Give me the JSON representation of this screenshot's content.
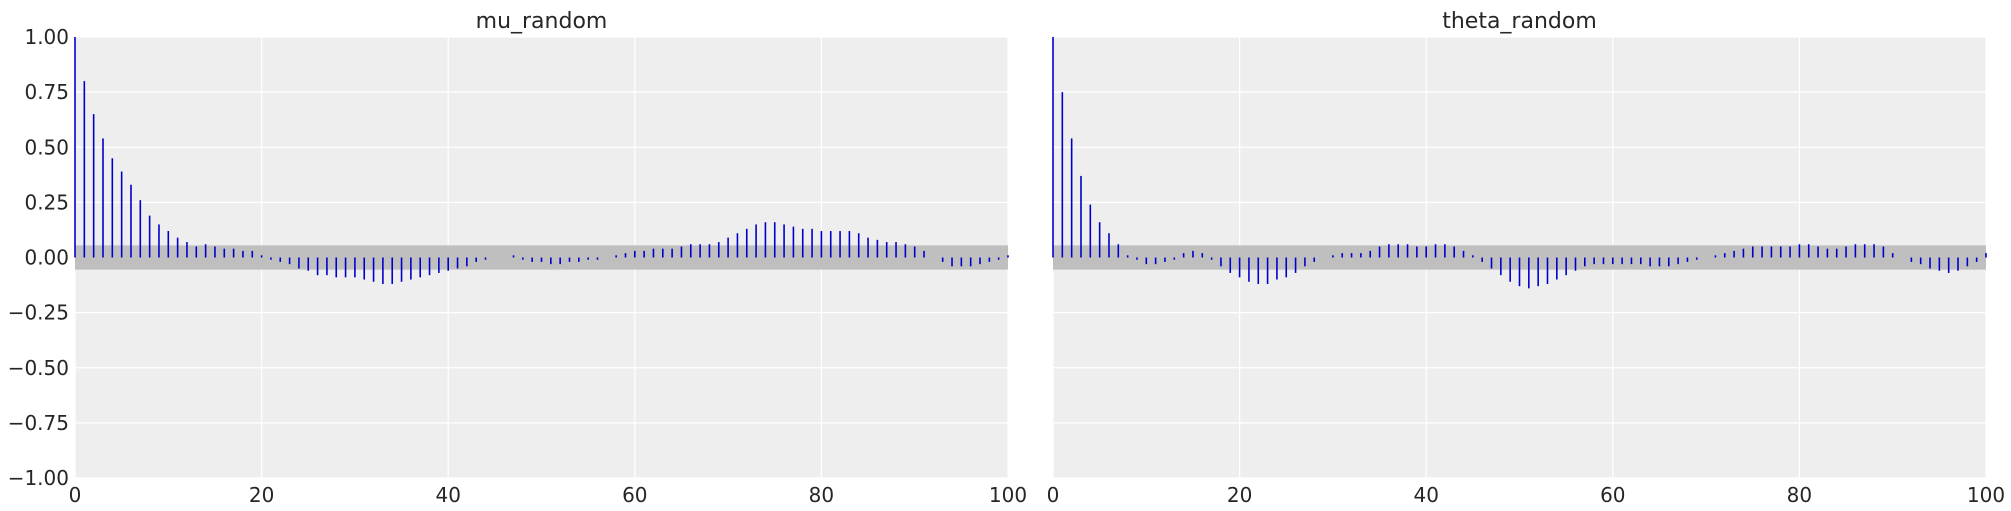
{
  "colors": {
    "panel_bg": "#eeeeee",
    "grid": "#ffffff",
    "stem": "#0000cc",
    "band": "#bfbfbf",
    "text": "#262626"
  },
  "chart_data": [
    {
      "type": "bar",
      "title": "mu_random",
      "xlabel": "",
      "ylabel": "",
      "xlim": [
        0,
        100
      ],
      "ylim": [
        -1.0,
        1.0
      ],
      "xticks": [
        0,
        20,
        40,
        60,
        80,
        100
      ],
      "yticks": [
        -1.0,
        -0.75,
        -0.5,
        -0.25,
        0.0,
        0.25,
        0.5,
        0.75,
        1.0
      ],
      "ytick_labels": [
        "−1.00",
        "−0.75",
        "−0.50",
        "−0.25",
        "0.00",
        "0.25",
        "0.50",
        "0.75",
        "1.00"
      ],
      "xtick_labels": [
        "0",
        "20",
        "40",
        "60",
        "80",
        "100"
      ],
      "y_labels_shown": true,
      "grid": true,
      "confidence_band": [
        -0.055,
        0.055
      ],
      "lags_start": 0,
      "values": [
        1.0,
        0.8,
        0.65,
        0.54,
        0.45,
        0.39,
        0.33,
        0.26,
        0.19,
        0.15,
        0.12,
        0.09,
        0.07,
        0.05,
        0.06,
        0.05,
        0.04,
        0.04,
        0.03,
        0.03,
        0.01,
        -0.01,
        -0.02,
        -0.03,
        -0.05,
        -0.06,
        -0.08,
        -0.08,
        -0.09,
        -0.09,
        -0.09,
        -0.1,
        -0.11,
        -0.12,
        -0.12,
        -0.11,
        -0.1,
        -0.09,
        -0.08,
        -0.07,
        -0.06,
        -0.05,
        -0.04,
        -0.02,
        -0.01,
        0.0,
        0.0,
        0.01,
        -0.01,
        -0.02,
        -0.02,
        -0.03,
        -0.03,
        -0.02,
        -0.02,
        -0.01,
        -0.01,
        0.0,
        0.01,
        0.02,
        0.03,
        0.03,
        0.04,
        0.04,
        0.04,
        0.05,
        0.06,
        0.06,
        0.06,
        0.07,
        0.09,
        0.11,
        0.13,
        0.15,
        0.16,
        0.16,
        0.15,
        0.14,
        0.13,
        0.13,
        0.12,
        0.12,
        0.12,
        0.12,
        0.11,
        0.09,
        0.08,
        0.07,
        0.07,
        0.06,
        0.05,
        0.03,
        0.0,
        -0.02,
        -0.04,
        -0.04,
        -0.04,
        -0.03,
        -0.02,
        -0.01,
        0.01
      ]
    },
    {
      "type": "bar",
      "title": "theta_random",
      "xlabel": "",
      "ylabel": "",
      "xlim": [
        0,
        100
      ],
      "ylim": [
        -1.0,
        1.0
      ],
      "xticks": [
        0,
        20,
        40,
        60,
        80,
        100
      ],
      "xtick_labels": [
        "0",
        "20",
        "40",
        "60",
        "80",
        "100"
      ],
      "y_labels_shown": false,
      "grid": true,
      "confidence_band": [
        -0.055,
        0.055
      ],
      "lags_start": 0,
      "values": [
        1.0,
        0.75,
        0.54,
        0.37,
        0.24,
        0.16,
        0.11,
        0.06,
        0.01,
        -0.01,
        -0.03,
        -0.03,
        -0.02,
        -0.01,
        0.02,
        0.03,
        0.02,
        -0.01,
        -0.04,
        -0.07,
        -0.09,
        -0.11,
        -0.12,
        -0.12,
        -0.1,
        -0.09,
        -0.07,
        -0.04,
        -0.02,
        0.0,
        0.01,
        0.02,
        0.02,
        0.02,
        0.03,
        0.05,
        0.06,
        0.06,
        0.06,
        0.05,
        0.05,
        0.06,
        0.06,
        0.05,
        0.03,
        0.01,
        -0.02,
        -0.05,
        -0.08,
        -0.11,
        -0.13,
        -0.14,
        -0.13,
        -0.12,
        -0.1,
        -0.08,
        -0.06,
        -0.04,
        -0.03,
        -0.03,
        -0.03,
        -0.03,
        -0.03,
        -0.03,
        -0.04,
        -0.04,
        -0.04,
        -0.03,
        -0.02,
        -0.01,
        0.0,
        0.01,
        0.02,
        0.03,
        0.04,
        0.05,
        0.05,
        0.05,
        0.05,
        0.05,
        0.06,
        0.06,
        0.05,
        0.04,
        0.04,
        0.05,
        0.06,
        0.06,
        0.06,
        0.05,
        0.02,
        0.0,
        -0.02,
        -0.03,
        -0.05,
        -0.06,
        -0.07,
        -0.06,
        -0.04,
        -0.02,
        0.02
      ]
    }
  ]
}
